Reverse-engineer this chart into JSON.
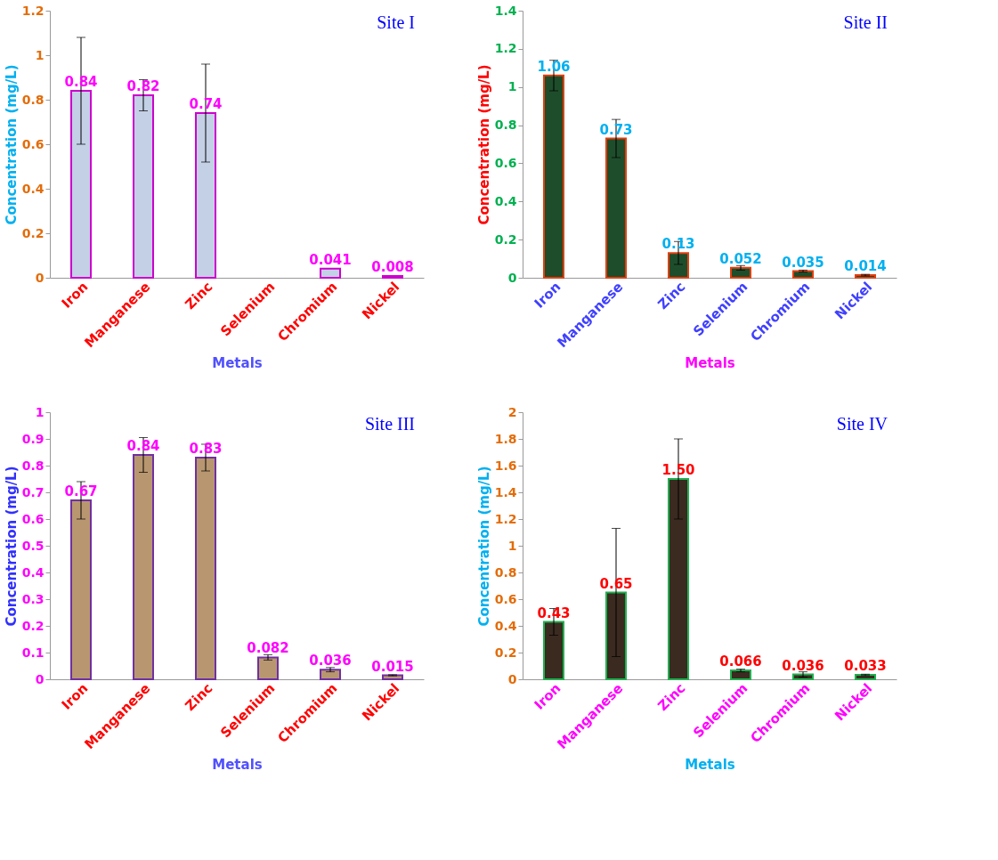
{
  "chart_data": [
    {
      "type": "bar",
      "title": "Site I",
      "xlabel": "Metals",
      "ylabel": "Concentration (mg/L)",
      "categories": [
        "Iron",
        "Manganese",
        "Zinc",
        "Selenium",
        "Chromium",
        "Nickel"
      ],
      "values": [
        0.84,
        0.82,
        0.74,
        null,
        0.041,
        0.008
      ],
      "value_labels": [
        "0.84",
        "0.82",
        "0.74",
        null,
        "0.041",
        "0.008"
      ],
      "errors": [
        0.24,
        0.07,
        0.22,
        null,
        null,
        null
      ],
      "color": "#c3d0e6",
      "ylim": [
        0,
        1.2
      ],
      "yticks": [
        0,
        0.2,
        0.4,
        0.6,
        0.8,
        1,
        1.2
      ]
    },
    {
      "type": "bar",
      "title": "Site II",
      "xlabel": "Metals",
      "ylabel": "Concentration (mg/L)",
      "categories": [
        "Iron",
        "Manganese",
        "Zinc",
        "Selenium",
        "Chromium",
        "Nickel"
      ],
      "values": [
        1.06,
        0.73,
        0.13,
        0.052,
        0.035,
        0.014
      ],
      "value_labels": [
        "1.06",
        "0.73",
        "0.13",
        "0.052",
        "0.035",
        "0.014"
      ],
      "errors": [
        0.08,
        0.1,
        0.06,
        0.012,
        0.005,
        0.004
      ],
      "color": "#1e4d2b",
      "ylim": [
        0,
        1.4
      ],
      "yticks": [
        0,
        0.2,
        0.4,
        0.6,
        0.8,
        1,
        1.2,
        1.4
      ]
    },
    {
      "type": "bar",
      "title": "Site III",
      "xlabel": "Metals",
      "ylabel": "Concentration (mg/L)",
      "categories": [
        "Iron",
        "Manganese",
        "Zinc",
        "Selenium",
        "Chromium",
        "Nickel"
      ],
      "values": [
        0.67,
        0.84,
        0.83,
        0.082,
        0.036,
        0.015
      ],
      "value_labels": [
        "0.67",
        "0.84",
        "0.83",
        "0.082",
        "0.036",
        "0.015"
      ],
      "errors": [
        0.07,
        0.065,
        0.05,
        0.01,
        0.008,
        0.002
      ],
      "color": "#b89770",
      "ylim": [
        0,
        1
      ],
      "yticks": [
        0,
        0.1,
        0.2,
        0.3,
        0.4,
        0.5,
        0.6,
        0.7,
        0.8,
        0.9,
        1
      ]
    },
    {
      "type": "bar",
      "title": "Site IV",
      "xlabel": "Metals",
      "ylabel": "Concentration (mg/L)",
      "categories": [
        "Iron",
        "Manganese",
        "Zinc",
        "Selenium",
        "Chromium",
        "Nickel"
      ],
      "values": [
        0.43,
        0.65,
        1.5,
        0.066,
        0.036,
        0.033
      ],
      "value_labels": [
        "0.43",
        "0.65",
        "1.50",
        "0.066",
        "0.036",
        "0.033"
      ],
      "errors": [
        0.1,
        0.48,
        0.3,
        0.01,
        0.02,
        0.005
      ],
      "color": "#3a2a20",
      "ylim": [
        0,
        2
      ],
      "yticks": [
        0,
        0.2,
        0.4,
        0.6,
        0.8,
        1,
        1.2,
        1.4,
        1.6,
        1.8,
        2
      ]
    }
  ]
}
